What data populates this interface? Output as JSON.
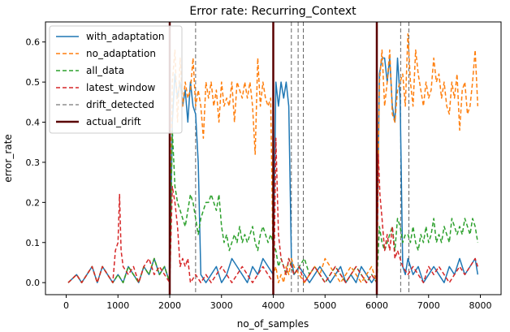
{
  "chart_data": {
    "type": "line",
    "title": "Error rate: Recurring_Context",
    "xlabel": "no_of_samples",
    "ylabel": "error_rate",
    "xlim": [
      -400,
      8400
    ],
    "ylim": [
      -0.03,
      0.65
    ],
    "xticks": [
      0,
      1000,
      2000,
      3000,
      4000,
      5000,
      6000,
      7000,
      8000
    ],
    "yticks": [
      0.0,
      0.1,
      0.2,
      0.3,
      0.4,
      0.5,
      0.6
    ],
    "grid": false,
    "legend_position": "upper-left",
    "drift_detected": [
      2000,
      2500,
      4350,
      4480,
      4580,
      6000,
      6460,
      6620
    ],
    "actual_drift": [
      2000,
      4000,
      6000
    ],
    "colors": {
      "with_adaptation": "#1f77b4",
      "no_adaptation": "#ff7f0e",
      "all_data": "#2ca02c",
      "latest_window": "#d62728",
      "drift_detected": "#555555",
      "actual_drift": "#5a0000"
    },
    "series": [
      {
        "name": "with_adaptation",
        "style": "solid",
        "x": [
          40,
          200,
          300,
          400,
          500,
          600,
          700,
          800,
          900,
          1000,
          1100,
          1200,
          1300,
          1400,
          1500,
          1600,
          1700,
          1800,
          1900,
          2000,
          2050,
          2100,
          2150,
          2200,
          2250,
          2300,
          2350,
          2400,
          2450,
          2500,
          2550,
          2600,
          2700,
          2800,
          2900,
          3000,
          3100,
          3200,
          3300,
          3400,
          3500,
          3600,
          3700,
          3800,
          3900,
          4000,
          4050,
          4100,
          4150,
          4200,
          4250,
          4300,
          4350,
          4400,
          4500,
          4600,
          4700,
          4800,
          4900,
          5000,
          5100,
          5200,
          5300,
          5400,
          5500,
          5600,
          5700,
          5800,
          5900,
          6000,
          6050,
          6100,
          6150,
          6200,
          6250,
          6300,
          6350,
          6400,
          6450,
          6500,
          6550,
          6600,
          6700,
          6800,
          6900,
          7000,
          7100,
          7200,
          7300,
          7400,
          7500,
          7600,
          7700,
          7800,
          7900,
          7950
        ],
        "y": [
          0.0,
          0.02,
          0.0,
          0.02,
          0.04,
          0.0,
          0.04,
          0.02,
          0.0,
          0.02,
          0.0,
          0.04,
          0.02,
          0.0,
          0.04,
          0.02,
          0.06,
          0.02,
          0.04,
          0.0,
          0.4,
          0.52,
          0.46,
          0.5,
          0.44,
          0.48,
          0.4,
          0.5,
          0.44,
          0.42,
          0.3,
          0.02,
          0.0,
          0.02,
          0.04,
          0.0,
          0.02,
          0.06,
          0.04,
          0.02,
          0.0,
          0.04,
          0.02,
          0.06,
          0.04,
          0.02,
          0.5,
          0.44,
          0.5,
          0.46,
          0.5,
          0.44,
          0.06,
          0.02,
          0.04,
          0.02,
          0.0,
          0.02,
          0.04,
          0.02,
          0.0,
          0.02,
          0.04,
          0.0,
          0.02,
          0.0,
          0.04,
          0.02,
          0.0,
          0.02,
          0.52,
          0.56,
          0.56,
          0.5,
          0.56,
          0.44,
          0.4,
          0.56,
          0.46,
          0.04,
          0.02,
          0.06,
          0.02,
          0.04,
          0.0,
          0.02,
          0.04,
          0.02,
          0.0,
          0.04,
          0.02,
          0.06,
          0.02,
          0.04,
          0.06,
          0.02
        ]
      },
      {
        "name": "no_adaptation",
        "style": "dashed",
        "x": [
          40,
          200,
          300,
          400,
          500,
          600,
          700,
          800,
          900,
          1000,
          1100,
          1200,
          1300,
          1400,
          1500,
          1600,
          1700,
          1800,
          1900,
          2000,
          2050,
          2100,
          2150,
          2200,
          2250,
          2300,
          2350,
          2400,
          2450,
          2500,
          2550,
          2600,
          2650,
          2700,
          2750,
          2800,
          2850,
          2900,
          2950,
          3000,
          3050,
          3100,
          3150,
          3200,
          3250,
          3300,
          3350,
          3400,
          3450,
          3500,
          3550,
          3600,
          3650,
          3700,
          3750,
          3800,
          3850,
          3900,
          3950,
          4000,
          4050,
          4100,
          4150,
          4200,
          4250,
          4300,
          4350,
          4400,
          4500,
          4600,
          4700,
          4800,
          4900,
          5000,
          5100,
          5200,
          5300,
          5400,
          5500,
          5600,
          5700,
          5800,
          5900,
          6000,
          6050,
          6100,
          6150,
          6200,
          6250,
          6300,
          6350,
          6400,
          6450,
          6500,
          6550,
          6600,
          6650,
          6700,
          6750,
          6800,
          6850,
          6900,
          6950,
          7000,
          7050,
          7100,
          7150,
          7200,
          7250,
          7300,
          7350,
          7400,
          7450,
          7500,
          7550,
          7600,
          7650,
          7700,
          7750,
          7800,
          7850,
          7900,
          7950
        ],
        "y": [
          0.0,
          0.02,
          0.0,
          0.02,
          0.04,
          0.0,
          0.04,
          0.02,
          0.0,
          0.02,
          0.0,
          0.04,
          0.02,
          0.0,
          0.04,
          0.02,
          0.06,
          0.02,
          0.04,
          0.0,
          0.5,
          0.58,
          0.4,
          0.56,
          0.44,
          0.5,
          0.46,
          0.48,
          0.56,
          0.44,
          0.48,
          0.44,
          0.36,
          0.5,
          0.46,
          0.5,
          0.44,
          0.48,
          0.4,
          0.5,
          0.44,
          0.46,
          0.44,
          0.5,
          0.4,
          0.5,
          0.48,
          0.46,
          0.5,
          0.46,
          0.5,
          0.44,
          0.32,
          0.56,
          0.44,
          0.5,
          0.46,
          0.44,
          0.46,
          0.02,
          0.04,
          0.0,
          0.02,
          0.0,
          0.04,
          0.02,
          0.06,
          0.04,
          0.02,
          0.0,
          0.02,
          0.04,
          0.02,
          0.06,
          0.04,
          0.02,
          0.0,
          0.02,
          0.04,
          0.02,
          0.0,
          0.02,
          0.04,
          0.0,
          0.5,
          0.58,
          0.44,
          0.5,
          0.58,
          0.42,
          0.4,
          0.48,
          0.5,
          0.52,
          0.44,
          0.62,
          0.5,
          0.44,
          0.58,
          0.52,
          0.48,
          0.44,
          0.5,
          0.46,
          0.48,
          0.56,
          0.5,
          0.52,
          0.46,
          0.5,
          0.44,
          0.42,
          0.5,
          0.46,
          0.52,
          0.38,
          0.48,
          0.5,
          0.42,
          0.44,
          0.5,
          0.58,
          0.44
        ]
      },
      {
        "name": "all_data",
        "style": "dashed",
        "x": [
          40,
          200,
          300,
          400,
          500,
          600,
          700,
          800,
          900,
          1000,
          1100,
          1200,
          1300,
          1400,
          1500,
          1600,
          1700,
          1800,
          1900,
          2000,
          2050,
          2100,
          2150,
          2200,
          2250,
          2300,
          2350,
          2400,
          2450,
          2500,
          2550,
          2600,
          2650,
          2700,
          2750,
          2800,
          2850,
          2900,
          2950,
          3000,
          3050,
          3100,
          3150,
          3200,
          3250,
          3300,
          3350,
          3400,
          3450,
          3500,
          3550,
          3600,
          3650,
          3700,
          3750,
          3800,
          3850,
          3900,
          3950,
          4000,
          4050,
          4100,
          4150,
          4200,
          4250,
          4300,
          4350,
          4400,
          4500,
          4600,
          4700,
          4800,
          4900,
          5000,
          5100,
          5200,
          5300,
          5400,
          5500,
          5600,
          5700,
          5800,
          5900,
          6000,
          6050,
          6100,
          6150,
          6200,
          6250,
          6300,
          6350,
          6400,
          6450,
          6500,
          6550,
          6600,
          6650,
          6700,
          6750,
          6800,
          6850,
          6900,
          6950,
          7000,
          7050,
          7100,
          7150,
          7200,
          7250,
          7300,
          7350,
          7400,
          7450,
          7500,
          7550,
          7600,
          7650,
          7700,
          7750,
          7800,
          7850,
          7900,
          7950
        ],
        "y": [
          0.0,
          0.02,
          0.0,
          0.02,
          0.04,
          0.0,
          0.04,
          0.02,
          0.0,
          0.02,
          0.0,
          0.04,
          0.02,
          0.0,
          0.04,
          0.02,
          0.06,
          0.02,
          0.04,
          0.0,
          0.38,
          0.24,
          0.2,
          0.18,
          0.16,
          0.14,
          0.18,
          0.22,
          0.2,
          0.16,
          0.12,
          0.16,
          0.18,
          0.2,
          0.2,
          0.22,
          0.2,
          0.18,
          0.22,
          0.14,
          0.1,
          0.12,
          0.08,
          0.1,
          0.12,
          0.1,
          0.14,
          0.1,
          0.12,
          0.1,
          0.12,
          0.14,
          0.1,
          0.08,
          0.12,
          0.14,
          0.12,
          0.1,
          0.12,
          0.1,
          0.08,
          0.04,
          0.06,
          0.04,
          0.02,
          0.06,
          0.04,
          0.02,
          0.04,
          0.06,
          0.02,
          0.04,
          0.02,
          0.0,
          0.02,
          0.04,
          0.02,
          0.0,
          0.02,
          0.04,
          0.02,
          0.0,
          0.02,
          0.0,
          0.14,
          0.1,
          0.08,
          0.1,
          0.12,
          0.14,
          0.08,
          0.16,
          0.14,
          0.1,
          0.12,
          0.12,
          0.1,
          0.14,
          0.1,
          0.08,
          0.12,
          0.1,
          0.14,
          0.1,
          0.12,
          0.16,
          0.1,
          0.12,
          0.1,
          0.14,
          0.12,
          0.1,
          0.16,
          0.14,
          0.12,
          0.14,
          0.12,
          0.16,
          0.14,
          0.12,
          0.16,
          0.14,
          0.1
        ]
      },
      {
        "name": "latest_window",
        "style": "dashed",
        "x": [
          40,
          200,
          300,
          400,
          500,
          600,
          700,
          800,
          900,
          950,
          1000,
          1030,
          1060,
          1100,
          1200,
          1300,
          1400,
          1500,
          1600,
          1700,
          1800,
          1900,
          2000,
          2050,
          2100,
          2150,
          2200,
          2250,
          2300,
          2350,
          2400,
          2500,
          2600,
          2700,
          2800,
          2900,
          3000,
          3100,
          3200,
          3300,
          3400,
          3500,
          3600,
          3700,
          3800,
          3900,
          4000,
          4020,
          4050,
          4100,
          4150,
          4200,
          4250,
          4300,
          4350,
          4400,
          4500,
          4600,
          4700,
          4800,
          4900,
          5000,
          5100,
          5200,
          5300,
          5400,
          5500,
          5600,
          5700,
          5800,
          5900,
          6000,
          6030,
          6060,
          6100,
          6150,
          6200,
          6250,
          6300,
          6350,
          6400,
          6500,
          6600,
          6700,
          6800,
          6900,
          7000,
          7100,
          7200,
          7300,
          7400,
          7500,
          7600,
          7700,
          7800,
          7900,
          7950
        ],
        "y": [
          0.0,
          0.02,
          0.0,
          0.02,
          0.04,
          0.0,
          0.04,
          0.02,
          0.0,
          0.08,
          0.1,
          0.22,
          0.08,
          0.04,
          0.02,
          0.04,
          0.0,
          0.04,
          0.06,
          0.02,
          0.04,
          0.02,
          0.0,
          0.24,
          0.2,
          0.14,
          0.04,
          0.06,
          0.04,
          0.06,
          0.0,
          0.02,
          0.0,
          0.02,
          0.0,
          0.02,
          0.04,
          0.02,
          0.0,
          0.02,
          0.04,
          0.02,
          0.0,
          0.02,
          0.04,
          0.02,
          0.0,
          0.08,
          0.36,
          0.12,
          0.06,
          0.04,
          0.02,
          0.06,
          0.04,
          0.02,
          0.04,
          0.0,
          0.02,
          0.04,
          0.02,
          0.0,
          0.02,
          0.04,
          0.02,
          0.0,
          0.02,
          0.04,
          0.02,
          0.0,
          0.02,
          0.0,
          0.32,
          0.22,
          0.16,
          0.08,
          0.12,
          0.08,
          0.14,
          0.06,
          0.08,
          0.04,
          0.02,
          0.04,
          0.02,
          0.0,
          0.04,
          0.02,
          0.04,
          0.02,
          0.0,
          0.02,
          0.04,
          0.02,
          0.04,
          0.06,
          0.04
        ]
      }
    ]
  },
  "legend": {
    "with_adaptation": "with_adaptation",
    "no_adaptation": "no_adaptation",
    "all_data": "all_data",
    "latest_window": "latest_window",
    "drift_detected": "drift_detected",
    "actual_drift": "actual_drift"
  }
}
